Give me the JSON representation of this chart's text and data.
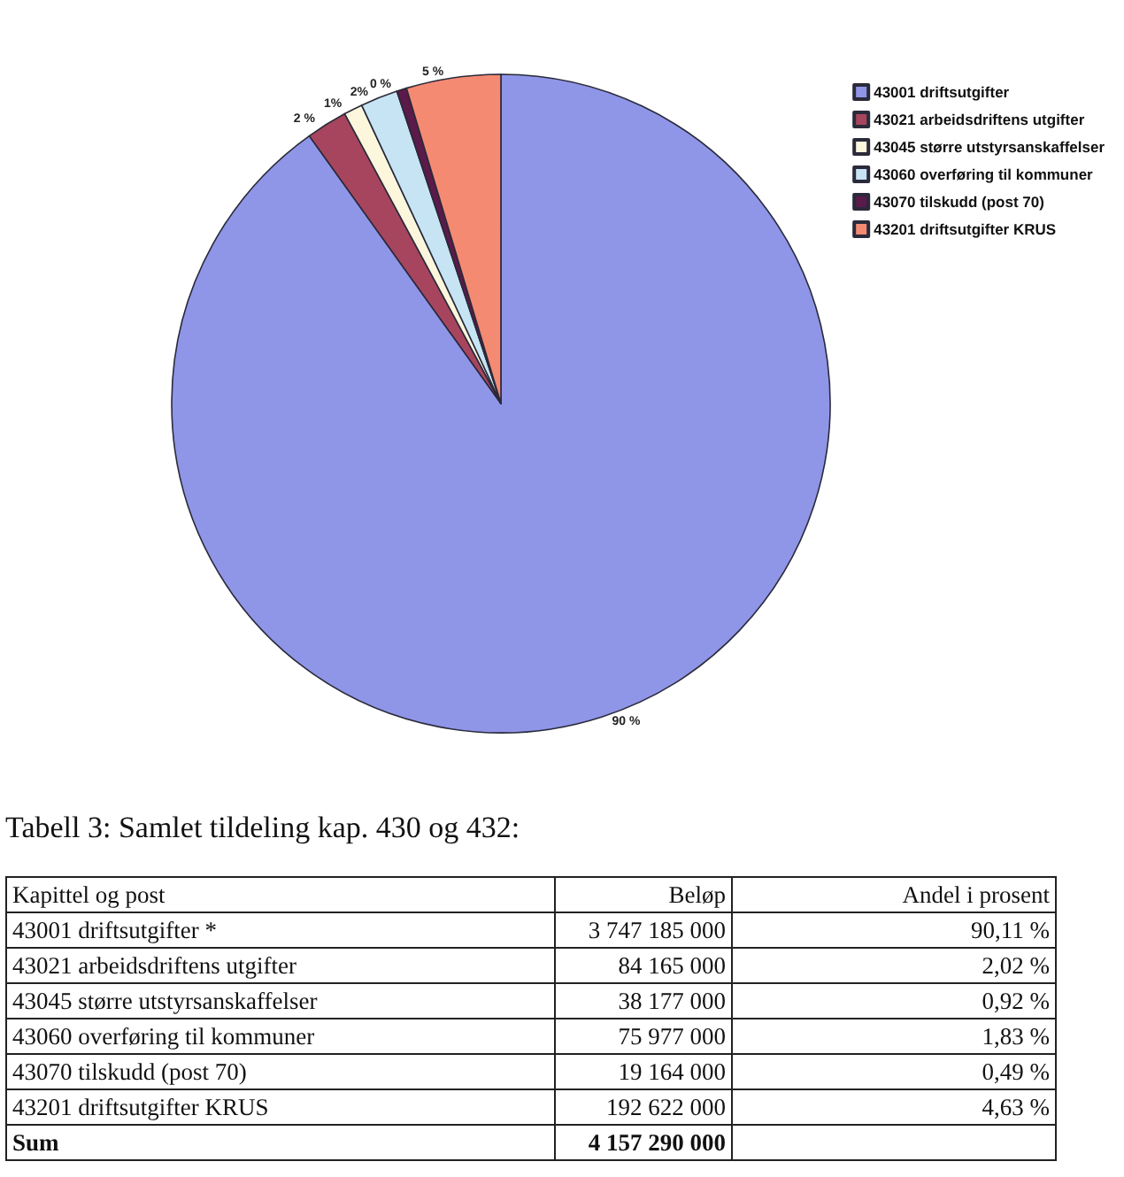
{
  "chart_data": [
    {
      "type": "pie",
      "categories": [
        "43001 driftsutgifter",
        "43021 arbeidsdriftens utgifter",
        "43045 større utstyrsanskaffelser",
        "43060 overføring til kommuner",
        "43070 tilskudd (post 70)",
        "43201 driftsutgifter KRUS"
      ],
      "values": [
        90.11,
        2.02,
        0.92,
        1.83,
        0.49,
        4.63
      ],
      "value_labels": [
        "90 %",
        "2 %",
        "1%",
        "2%",
        "0 %",
        "5 %"
      ],
      "colors": [
        "#8f96e8",
        "#a8455e",
        "#fbf6dc",
        "#c6e4f4",
        "#5a1a4a",
        "#f58a72"
      ],
      "legend": "top right"
    },
    {
      "type": "other",
      "title": "Tabell 3: Samlet tildeling kap. 430 og 432:",
      "xlabel": "Kapittel og post",
      "categories": [
        "43001 driftsutgifter *",
        "43021 arbeidsdriftens utgifter",
        "43045 større utstyrsanskaffelser",
        "43060 overføring til kommuner",
        "43070 tilskudd (post 70)",
        "43201 driftsutgifter KRUS",
        "Sum"
      ],
      "series": [
        {
          "name": "Beløp",
          "values": [
            3747185000,
            84165000,
            38177000,
            75977000,
            19164000,
            192622000,
            4157290000
          ],
          "value_labels": [
            "3 747 185 000",
            "84 165 000",
            "38 177 000",
            "75 977 000",
            "19 164 000",
            "192 622 000",
            "4 157 290 000"
          ]
        },
        {
          "name": "Andel i prosent",
          "values": [
            90.11,
            2.02,
            0.92,
            1.83,
            0.49,
            4.63,
            null
          ],
          "value_labels": [
            "90,11 %",
            "2,02 %",
            "0,92 %",
            "1,83 %",
            "0,49 %",
            "4,63 %",
            null
          ]
        }
      ]
    }
  ]
}
